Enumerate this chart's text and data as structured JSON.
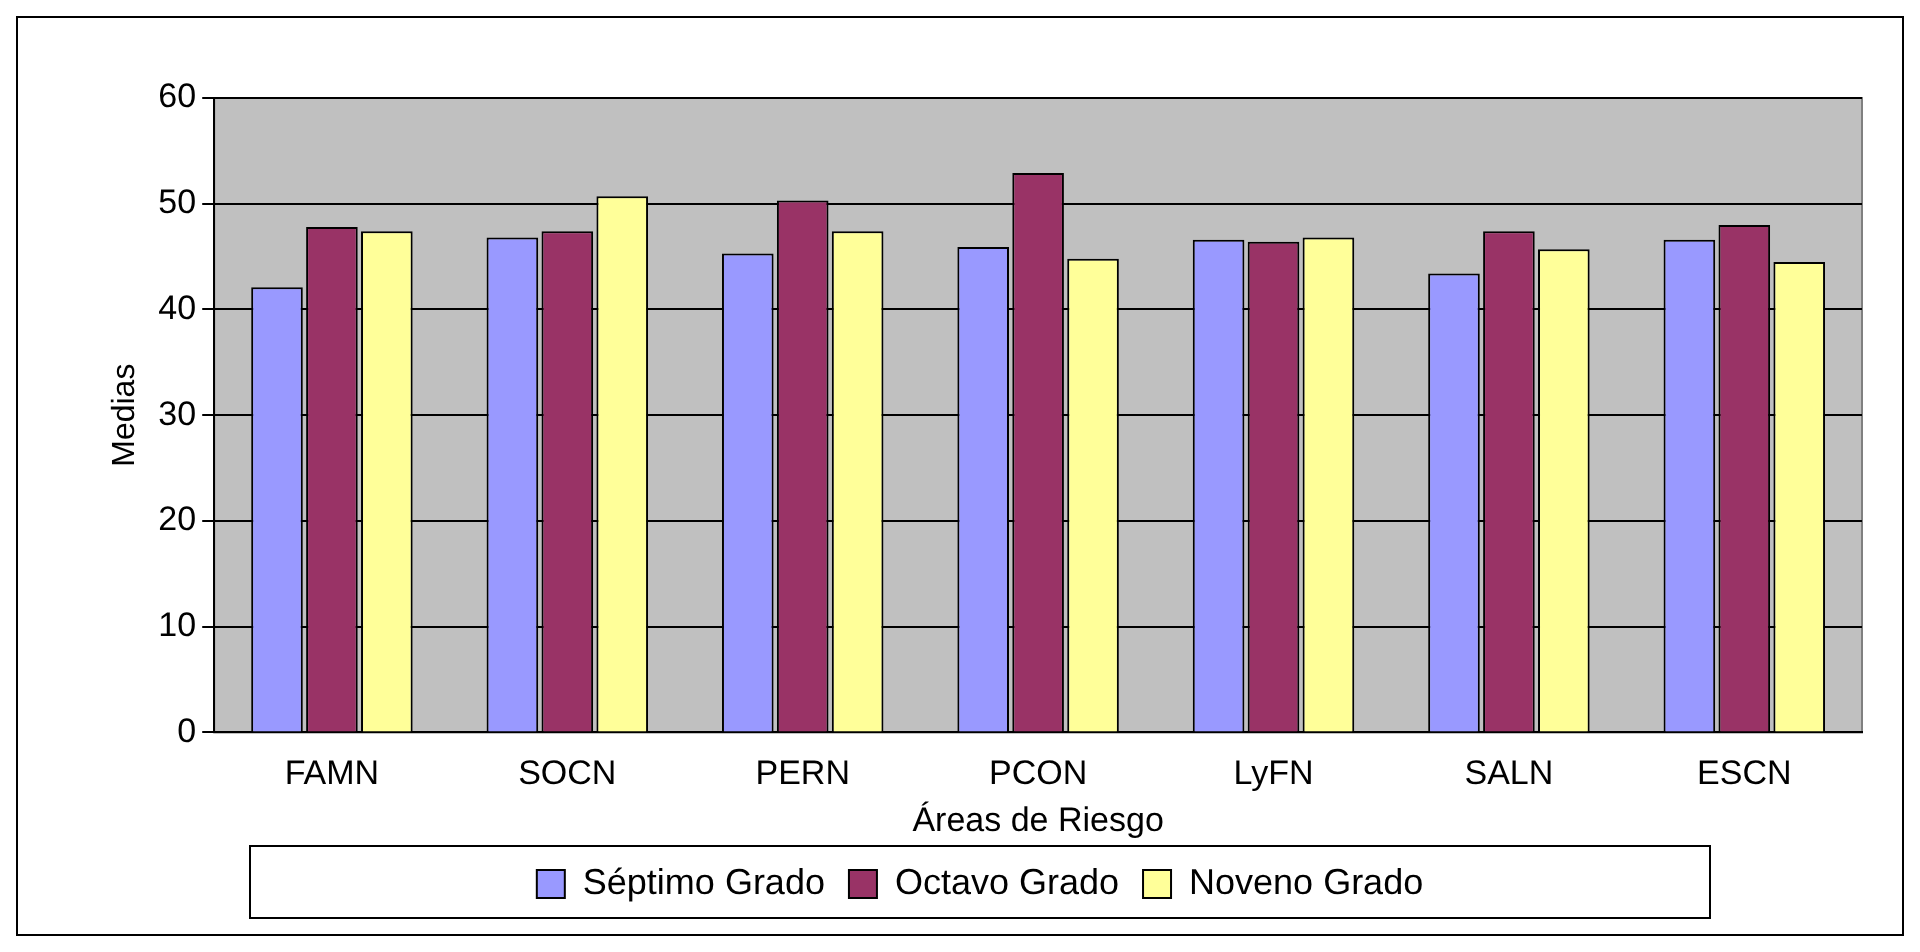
{
  "chart_data": {
    "type": "bar",
    "xlabel": "Áreas de Riesgo",
    "ylabel": "Medias",
    "categories": [
      "FAMN",
      "SOCN",
      "PERN",
      "PCON",
      "LyFN",
      "SALN",
      "ESCN"
    ],
    "series": [
      {
        "name": "Séptimo Grado",
        "color": "#9999ff",
        "values": [
          42.1,
          46.8,
          45.3,
          45.9,
          46.6,
          43.4,
          46.6
        ]
      },
      {
        "name": "Octavo Grado",
        "color": "#993366",
        "values": [
          47.8,
          47.4,
          50.3,
          52.9,
          46.4,
          47.4,
          48.0
        ]
      },
      {
        "name": "Noveno Grado",
        "color": "#ffff99",
        "values": [
          47.4,
          50.7,
          47.4,
          44.8,
          46.8,
          45.7,
          44.5
        ]
      }
    ],
    "ylim": [
      0,
      60
    ],
    "yticks": [
      0,
      10,
      20,
      30,
      40,
      50,
      60
    ],
    "grid": "y",
    "legend": "bottom"
  }
}
